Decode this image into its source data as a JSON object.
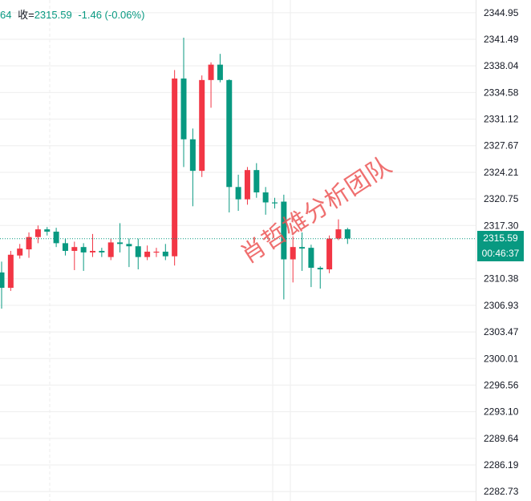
{
  "header": {
    "open_fragment": "64",
    "close_label": "收=",
    "close_value": "2315.59",
    "change": "-1.46 (-0.06%)"
  },
  "watermark": "肖哲雄分析团队",
  "last_price": {
    "value": "2315.59",
    "countdown": "00:46:37"
  },
  "colors": {
    "up": "#f23645",
    "down": "#089981",
    "grid": "#eeeeee",
    "axis_text": "#131722",
    "price_line": "#089981"
  },
  "chart_data": {
    "type": "candlestick",
    "y_axis": {
      "position": "right",
      "ylim": [
        2281.5,
        2346.6
      ],
      "tick_labels": [
        "2344.95",
        "2341.49",
        "2338.04",
        "2334.58",
        "2331.12",
        "2327.67",
        "2324.21",
        "2320.75",
        "2317.30",
        "2310.38",
        "2306.93",
        "2303.47",
        "2300.01",
        "2296.56",
        "2293.10",
        "2289.64",
        "2286.19",
        "2282.73"
      ]
    },
    "grid": true,
    "last_price_line": 2315.59,
    "candles": [
      {
        "open": 2311.2,
        "close": 2309.2,
        "high": 2312.6,
        "low": 2306.5
      },
      {
        "open": 2309.2,
        "close": 2313.5,
        "high": 2314.0,
        "low": 2308.8
      },
      {
        "open": 2313.4,
        "close": 2314.3,
        "high": 2314.9,
        "low": 2313.0
      },
      {
        "open": 2314.2,
        "close": 2315.8,
        "high": 2316.4,
        "low": 2313.1
      },
      {
        "open": 2315.8,
        "close": 2316.8,
        "high": 2317.3,
        "low": 2315.0
      },
      {
        "open": 2316.8,
        "close": 2316.5,
        "high": 2317.1,
        "low": 2316.0
      },
      {
        "open": 2316.5,
        "close": 2315.0,
        "high": 2317.0,
        "low": 2314.5
      },
      {
        "open": 2315.0,
        "close": 2314.0,
        "high": 2315.6,
        "low": 2313.4
      },
      {
        "open": 2314.0,
        "close": 2314.5,
        "high": 2315.2,
        "low": 2311.5
      },
      {
        "open": 2314.5,
        "close": 2313.8,
        "high": 2315.0,
        "low": 2311.4
      },
      {
        "open": 2313.8,
        "close": 2314.0,
        "high": 2316.2,
        "low": 2313.2
      },
      {
        "open": 2314.0,
        "close": 2313.8,
        "high": 2314.4,
        "low": 2313.2
      },
      {
        "open": 2313.2,
        "close": 2315.1,
        "high": 2315.6,
        "low": 2312.8
      },
      {
        "open": 2315.1,
        "close": 2314.9,
        "high": 2317.6,
        "low": 2313.8
      },
      {
        "open": 2314.9,
        "close": 2314.6,
        "high": 2315.6,
        "low": 2311.9
      },
      {
        "open": 2314.6,
        "close": 2313.2,
        "high": 2315.6,
        "low": 2311.6
      },
      {
        "open": 2313.2,
        "close": 2313.9,
        "high": 2314.7,
        "low": 2312.8
      },
      {
        "open": 2313.9,
        "close": 2313.9,
        "high": 2314.4,
        "low": 2313.2
      },
      {
        "open": 2313.9,
        "close": 2313.3,
        "high": 2314.9,
        "low": 2312.8
      },
      {
        "open": 2313.3,
        "close": 2336.4,
        "high": 2337.5,
        "low": 2312.1
      },
      {
        "open": 2336.4,
        "close": 2328.5,
        "high": 2341.7,
        "low": 2324.9
      },
      {
        "open": 2328.5,
        "close": 2324.4,
        "high": 2329.9,
        "low": 2319.8
      },
      {
        "open": 2324.4,
        "close": 2336.2,
        "high": 2336.8,
        "low": 2323.6
      },
      {
        "open": 2336.2,
        "close": 2338.2,
        "high": 2338.5,
        "low": 2332.6
      },
      {
        "open": 2338.2,
        "close": 2336.2,
        "high": 2339.6,
        "low": 2335.9
      },
      {
        "open": 2336.2,
        "close": 2322.3,
        "high": 2336.3,
        "low": 2319.0
      },
      {
        "open": 2322.3,
        "close": 2320.7,
        "high": 2323.9,
        "low": 2319.2
      },
      {
        "open": 2320.7,
        "close": 2324.5,
        "high": 2324.9,
        "low": 2320.0
      },
      {
        "open": 2324.5,
        "close": 2321.6,
        "high": 2325.4,
        "low": 2320.9
      },
      {
        "open": 2321.6,
        "close": 2320.3,
        "high": 2322.3,
        "low": 2318.7
      },
      {
        "open": 2320.3,
        "close": 2320.2,
        "high": 2320.9,
        "low": 2319.5
      },
      {
        "open": 2320.4,
        "close": 2312.9,
        "high": 2321.3,
        "low": 2307.7
      },
      {
        "open": 2312.9,
        "close": 2314.5,
        "high": 2315.9,
        "low": 2309.9
      },
      {
        "open": 2314.5,
        "close": 2314.3,
        "high": 2316.4,
        "low": 2311.4
      },
      {
        "open": 2314.4,
        "close": 2311.8,
        "high": 2314.8,
        "low": 2309.3
      },
      {
        "open": 2311.8,
        "close": 2311.6,
        "high": 2312.0,
        "low": 2309.1
      },
      {
        "open": 2311.6,
        "close": 2315.6,
        "high": 2316.0,
        "low": 2311.1
      },
      {
        "open": 2315.6,
        "close": 2316.8,
        "high": 2318.1,
        "low": 2315.4
      },
      {
        "open": 2316.8,
        "close": 2315.6,
        "high": 2317.0,
        "low": 2314.9
      }
    ]
  }
}
